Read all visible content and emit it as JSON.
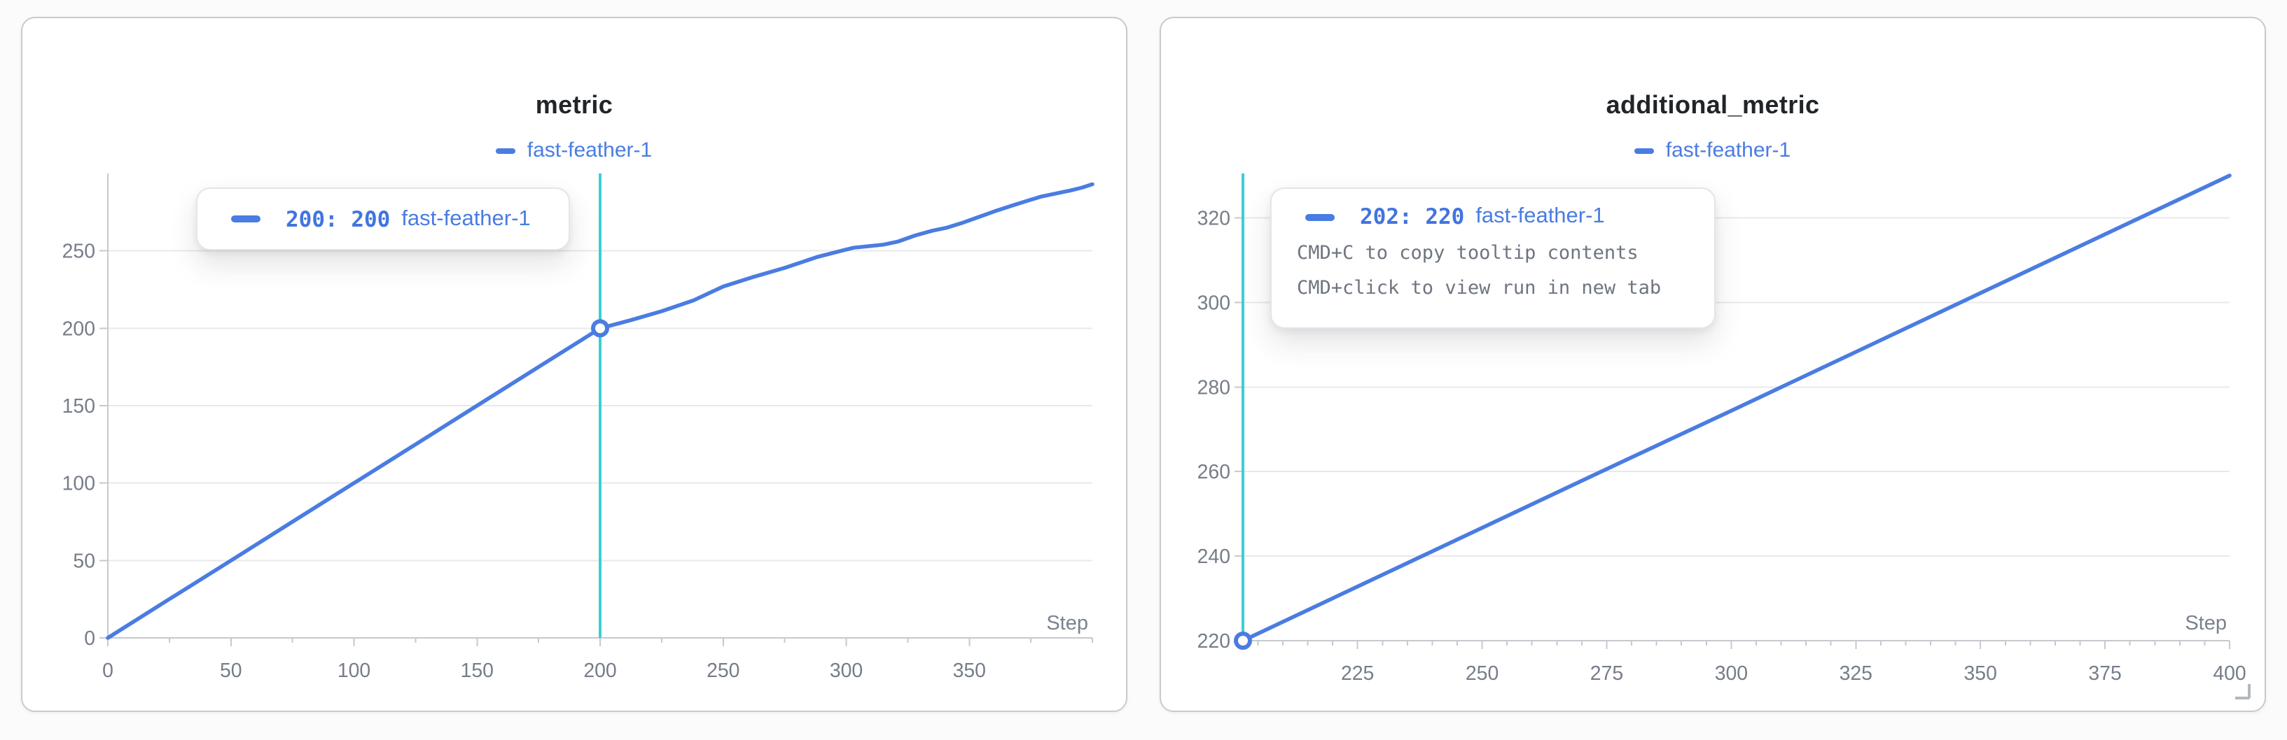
{
  "colors": {
    "page_bg": "#fbfbfb",
    "panel_bg": "#ffffff",
    "panel_border": "#c9cacc",
    "grid": "#e8e9eb",
    "axis": "#c6c9ce",
    "tick_label": "#767d89",
    "title": "#212529",
    "accent_blue": "#4a7ce2",
    "crosshair_teal": "#3ccfd2",
    "marker_fill": "#ffffff",
    "hint_gray": "#6e757f",
    "step_label": "#7b828e"
  },
  "panels": [
    {
      "title": "metric",
      "legend": {
        "label": "fast-feather-1"
      },
      "step_label": "Step",
      "tooltip": {
        "value": "200: 200",
        "run": "fast-feather-1",
        "hints": []
      }
    },
    {
      "title": "additional_metric",
      "legend": {
        "label": "fast-feather-1"
      },
      "step_label": "Step",
      "tooltip": {
        "value": "202: 220",
        "run": "fast-feather-1",
        "hints": [
          "CMD+C to copy tooltip contents",
          "CMD+click to view run in new tab"
        ]
      }
    }
  ],
  "chart_data": [
    {
      "type": "line",
      "title": "metric",
      "xlabel": "Step",
      "ylabel": "",
      "legend_position": "top",
      "grid": "horizontal",
      "xlim": [
        0,
        400
      ],
      "ylim": [
        0,
        300
      ],
      "x_ticks": [
        0,
        50,
        100,
        150,
        200,
        250,
        300,
        350
      ],
      "y_ticks": [
        0,
        50,
        100,
        150,
        200,
        250
      ],
      "x_minor_step": 25,
      "crosshair_x": 200,
      "highlight_point": [
        200,
        200
      ],
      "series": [
        {
          "name": "fast-feather-1",
          "color": "#4a7ce2",
          "points": [
            [
              0,
              0
            ],
            [
              25,
              25
            ],
            [
              50,
              50
            ],
            [
              75,
              75
            ],
            [
              100,
              100
            ],
            [
              125,
              125
            ],
            [
              150,
              150
            ],
            [
              175,
              175
            ],
            [
              200,
              200
            ],
            [
              212,
              205
            ],
            [
              225,
              211
            ],
            [
              238,
              218
            ],
            [
              250,
              227
            ],
            [
              262,
              233
            ],
            [
              275,
              239
            ],
            [
              288,
              246
            ],
            [
              298,
              250
            ],
            [
              303,
              252
            ],
            [
              309,
              253
            ],
            [
              315,
              254
            ],
            [
              321,
              256
            ],
            [
              328,
              260
            ],
            [
              335,
              263
            ],
            [
              341,
              265
            ],
            [
              347,
              268
            ],
            [
              354,
              272
            ],
            [
              361,
              276
            ],
            [
              367,
              279
            ],
            [
              373,
              282
            ],
            [
              379,
              285
            ],
            [
              385,
              287
            ],
            [
              391,
              289
            ],
            [
              396,
              291
            ],
            [
              400,
              293
            ]
          ]
        }
      ]
    },
    {
      "type": "line",
      "title": "additional_metric",
      "xlabel": "Step",
      "ylabel": "",
      "legend_position": "top",
      "grid": "horizontal",
      "xlim": [
        202,
        400
      ],
      "ylim": [
        220,
        330.5
      ],
      "x_ticks": [
        225,
        250,
        275,
        300,
        325,
        350,
        375,
        400
      ],
      "y_ticks": [
        220,
        240,
        260,
        280,
        300,
        320
      ],
      "x_minor_step": 5,
      "crosshair_x": 202,
      "highlight_point": [
        202,
        220
      ],
      "series": [
        {
          "name": "fast-feather-1",
          "color": "#4a7ce2",
          "points": [
            [
              202,
              220
            ],
            [
              225,
              232.8
            ],
            [
              250,
              246.7
            ],
            [
              275,
              260.6
            ],
            [
              300,
              274.4
            ],
            [
              325,
              288.3
            ],
            [
              350,
              302.2
            ],
            [
              375,
              316.1
            ],
            [
              400,
              330
            ]
          ]
        }
      ]
    }
  ]
}
